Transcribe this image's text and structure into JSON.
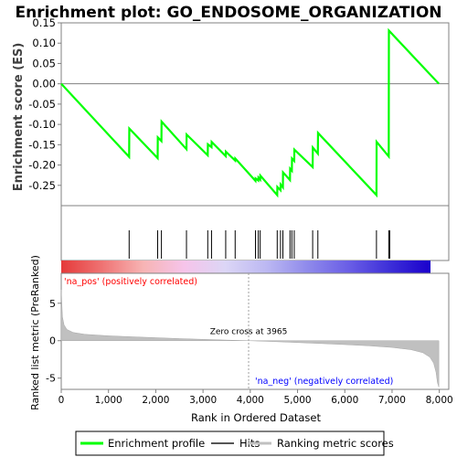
{
  "chart_data": {
    "type": "line",
    "title": "Enrichment plot: GO_ENDOSOME_ORGANIZATION",
    "xlabel": "Rank in Ordered Dataset",
    "xlim": [
      0,
      8200
    ],
    "x_ticks": [
      0,
      1000,
      2000,
      3000,
      4000,
      5000,
      6000,
      7000,
      8000
    ],
    "x_tick_labels": [
      "0",
      "1,000",
      "2,000",
      "3,000",
      "4,000",
      "5,000",
      "6,000",
      "7,000",
      "8,000"
    ],
    "enrichment_panel": {
      "ylabel": "Enrichment score (ES)",
      "ylim": [
        -0.3,
        0.15
      ],
      "y_ticks": [
        0.15,
        0.1,
        0.05,
        0.0,
        -0.05,
        -0.1,
        -0.15,
        -0.2,
        -0.25
      ],
      "y_tick_labels": [
        "0.15",
        "0.10",
        "0.05",
        "0.00",
        "-0.05",
        "-0.10",
        "-0.15",
        "-0.20",
        "-0.25"
      ],
      "series": [
        {
          "name": "Enrichment profile",
          "color": "#00ff00",
          "points": [
            [
              0,
              0.0
            ],
            [
              1437,
              -0.18
            ],
            [
              1440,
              -0.11
            ],
            [
              2040,
              -0.183
            ],
            [
              2043,
              -0.132
            ],
            [
              2120,
              -0.141
            ],
            [
              2123,
              -0.093
            ],
            [
              2650,
              -0.161
            ],
            [
              2653,
              -0.125
            ],
            [
              3100,
              -0.176
            ],
            [
              3103,
              -0.149
            ],
            [
              3180,
              -0.156
            ],
            [
              3183,
              -0.143
            ],
            [
              3480,
              -0.178
            ],
            [
              3483,
              -0.167
            ],
            [
              3680,
              -0.189
            ],
            [
              3683,
              -0.184
            ],
            [
              4110,
              -0.239
            ],
            [
              4113,
              -0.233
            ],
            [
              4170,
              -0.238
            ],
            [
              4173,
              -0.231
            ],
            [
              4210,
              -0.236
            ],
            [
              4213,
              -0.226
            ],
            [
              4570,
              -0.274
            ],
            [
              4573,
              -0.254
            ],
            [
              4640,
              -0.262
            ],
            [
              4643,
              -0.248
            ],
            [
              4690,
              -0.255
            ],
            [
              4693,
              -0.218
            ],
            [
              4840,
              -0.237
            ],
            [
              4843,
              -0.209
            ],
            [
              4880,
              -0.214
            ],
            [
              4883,
              -0.184
            ],
            [
              4930,
              -0.19
            ],
            [
              4933,
              -0.162
            ],
            [
              5320,
              -0.205
            ],
            [
              5323,
              -0.157
            ],
            [
              5430,
              -0.172
            ],
            [
              5433,
              -0.121
            ],
            [
              6670,
              -0.274
            ],
            [
              6673,
              -0.143
            ],
            [
              6930,
              -0.179
            ],
            [
              6933,
              0.131
            ],
            [
              7990,
              0.0
            ]
          ]
        }
      ],
      "zero_line": 0.0
    },
    "hits": [
      1437,
      2040,
      2120,
      2650,
      3100,
      3180,
      3480,
      3680,
      4110,
      4170,
      4210,
      4570,
      4640,
      4690,
      4840,
      4880,
      4930,
      5320,
      5430,
      6670,
      6930,
      6950
    ],
    "ranking_panel": {
      "ylabel": "Ranked list metric (PreRanked)",
      "ylim": [
        -6.5,
        9.0
      ],
      "y_ticks": [
        5,
        0,
        -5
      ],
      "y_tick_labels": [
        "5",
        "0",
        "-5"
      ],
      "zero_cross_rank": 3965,
      "zero_cross_text": "Zero cross at 3965",
      "pos_label": "'na_pos' (positively correlated)",
      "neg_label": "'na_neg' (negatively correlated)",
      "pos_label_color": "#ff0000",
      "neg_label_color": "#0000ff",
      "metric_curve": [
        [
          0,
          6.8
        ],
        [
          25,
          3.2
        ],
        [
          60,
          2.1
        ],
        [
          120,
          1.5
        ],
        [
          250,
          1.1
        ],
        [
          500,
          0.85
        ],
        [
          1000,
          0.65
        ],
        [
          1500,
          0.52
        ],
        [
          2000,
          0.4
        ],
        [
          2500,
          0.28
        ],
        [
          3000,
          0.18
        ],
        [
          3500,
          0.08
        ],
        [
          3965,
          0.0
        ],
        [
          4500,
          -0.12
        ],
        [
          5000,
          -0.25
        ],
        [
          5500,
          -0.38
        ],
        [
          6000,
          -0.52
        ],
        [
          6500,
          -0.68
        ],
        [
          7000,
          -0.9
        ],
        [
          7400,
          -1.2
        ],
        [
          7650,
          -1.6
        ],
        [
          7800,
          -2.2
        ],
        [
          7880,
          -3.0
        ],
        [
          7930,
          -4.2
        ],
        [
          7960,
          -5.6
        ],
        [
          7990,
          -6.2
        ]
      ]
    },
    "heatmap_gradient": [
      "#e53a3a",
      "#ef7373",
      "#f7b4b4",
      "#f6c4ea",
      "#dcd6f6",
      "#bcb8f2",
      "#8f8aeb",
      "#6a5ee6",
      "#3d2fd8",
      "#1a00cc"
    ],
    "legend": {
      "placement": "bottom",
      "items": [
        {
          "label": "Enrichment profile",
          "color": "#00ff00"
        },
        {
          "label": "Hits",
          "color": "#555555"
        },
        {
          "label": "Ranking metric scores",
          "color": "#c0c0c0"
        }
      ]
    }
  }
}
